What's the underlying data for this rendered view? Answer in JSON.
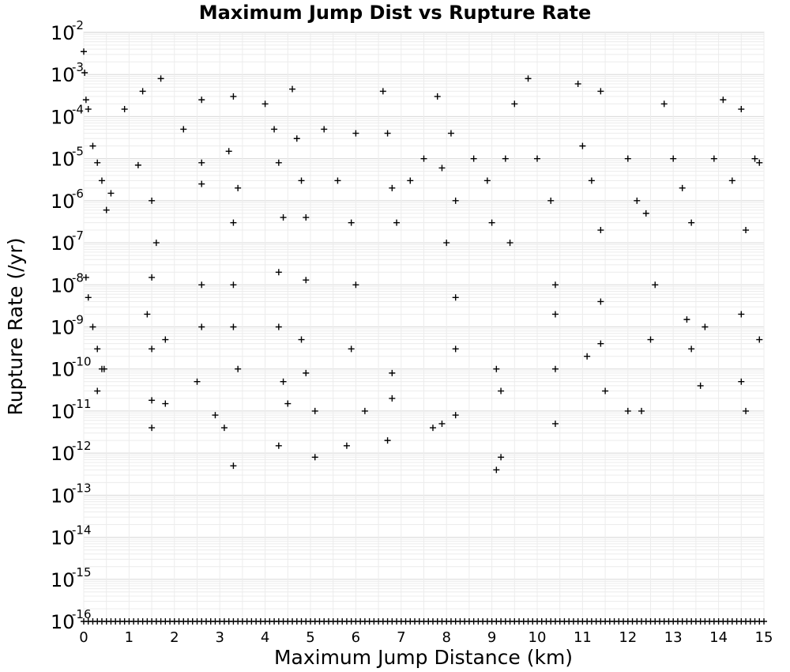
{
  "chart_data": {
    "type": "scatter",
    "title": "Maximum Jump Dist vs Rupture Rate",
    "xlabel": "Maximum Jump Distance (km)",
    "ylabel": "Rupture Rate (/yr)",
    "xlim": [
      0,
      15
    ],
    "ylim": [
      1e-16,
      0.01
    ],
    "yscale": "log",
    "grid": true,
    "marker": "plus",
    "marker_color": "#000000",
    "x_ticks": [
      "0",
      "1",
      "2",
      "3",
      "4",
      "5",
      "6",
      "7",
      "8",
      "9",
      "10",
      "11",
      "12",
      "13",
      "14",
      "15"
    ],
    "y_ticks": [
      {
        "base": "10",
        "exp": "-2"
      },
      {
        "base": "10",
        "exp": "-3"
      },
      {
        "base": "10",
        "exp": "-4"
      },
      {
        "base": "10",
        "exp": "-5"
      },
      {
        "base": "10",
        "exp": "-6"
      },
      {
        "base": "10",
        "exp": "-7"
      },
      {
        "base": "10",
        "exp": "-8"
      },
      {
        "base": "10",
        "exp": "-9"
      },
      {
        "base": "10",
        "exp": "-10"
      },
      {
        "base": "10",
        "exp": "-11"
      },
      {
        "base": "10",
        "exp": "-12"
      },
      {
        "base": "10",
        "exp": "-13"
      },
      {
        "base": "10",
        "exp": "-14"
      },
      {
        "base": "10",
        "exp": "-15"
      },
      {
        "base": "10",
        "exp": "-16"
      }
    ],
    "series": [
      {
        "points": [
          [
            0.0,
            0.0035
          ],
          [
            0.02,
            0.0011
          ],
          [
            0.05,
            0.00025
          ],
          [
            0.1,
            0.00015
          ],
          [
            0.2,
            2e-05
          ],
          [
            0.3,
            8e-06
          ],
          [
            0.4,
            3e-06
          ],
          [
            0.5,
            6e-07
          ],
          [
            0.6,
            1.5e-06
          ],
          [
            0.05,
            1.5e-08
          ],
          [
            0.1,
            5e-09
          ],
          [
            0.2,
            1e-09
          ],
          [
            0.3,
            3e-10
          ],
          [
            0.4,
            1e-10
          ],
          [
            0.3,
            3e-11
          ],
          [
            0.45,
            1e-10
          ],
          [
            0.9,
            0.00015
          ],
          [
            1.2,
            7e-06
          ],
          [
            1.3,
            0.0004
          ],
          [
            1.5,
            1e-06
          ],
          [
            1.6,
            1e-07
          ],
          [
            1.7,
            0.0008
          ],
          [
            1.5,
            1.5e-08
          ],
          [
            1.4,
            2e-09
          ],
          [
            1.5,
            3e-10
          ],
          [
            1.5,
            4e-12
          ],
          [
            1.5,
            1.8e-11
          ],
          [
            1.8,
            1.5e-11
          ],
          [
            1.8,
            5e-10
          ],
          [
            2.2,
            5e-05
          ],
          [
            2.6,
            0.00025
          ],
          [
            2.6,
            8e-06
          ],
          [
            2.6,
            2.5e-06
          ],
          [
            2.6,
            1e-08
          ],
          [
            2.6,
            1e-09
          ],
          [
            2.5,
            5e-11
          ],
          [
            3.3,
            0.0003
          ],
          [
            3.2,
            1.5e-05
          ],
          [
            3.4,
            2e-06
          ],
          [
            3.3,
            3e-07
          ],
          [
            3.3,
            1e-08
          ],
          [
            3.3,
            1e-09
          ],
          [
            3.4,
            1e-10
          ],
          [
            3.3,
            5e-13
          ],
          [
            3.1,
            4e-12
          ],
          [
            2.9,
            8e-12
          ],
          [
            4.0,
            0.0002
          ],
          [
            4.2,
            5e-05
          ],
          [
            4.3,
            8e-06
          ],
          [
            4.4,
            4e-07
          ],
          [
            4.3,
            2e-08
          ],
          [
            4.3,
            1e-09
          ],
          [
            4.4,
            5e-11
          ],
          [
            4.3,
            1.5e-12
          ],
          [
            4.5,
            1.5e-11
          ],
          [
            4.6,
            0.00045
          ],
          [
            4.7,
            3e-05
          ],
          [
            4.8,
            3e-06
          ],
          [
            4.9,
            4e-07
          ],
          [
            4.9,
            1.3e-08
          ],
          [
            4.8,
            5e-10
          ],
          [
            4.9,
            8e-11
          ],
          [
            5.1,
            1e-11
          ],
          [
            5.1,
            8e-13
          ],
          [
            5.3,
            5e-05
          ],
          [
            5.6,
            3e-06
          ],
          [
            5.9,
            3e-07
          ],
          [
            6.0,
            4e-05
          ],
          [
            6.0,
            1e-08
          ],
          [
            5.9,
            3e-10
          ],
          [
            5.8,
            1.5e-12
          ],
          [
            6.2,
            1e-11
          ],
          [
            6.6,
            0.0004
          ],
          [
            6.7,
            4e-05
          ],
          [
            6.8,
            2e-06
          ],
          [
            6.9,
            3e-07
          ],
          [
            6.8,
            8e-11
          ],
          [
            6.8,
            2e-11
          ],
          [
            6.7,
            2e-12
          ],
          [
            7.2,
            3e-06
          ],
          [
            7.5,
            1e-05
          ],
          [
            7.8,
            0.0003
          ],
          [
            7.9,
            6e-06
          ],
          [
            8.0,
            1e-07
          ],
          [
            8.1,
            4e-05
          ],
          [
            8.2,
            1e-06
          ],
          [
            8.2,
            3e-10
          ],
          [
            8.2,
            8e-12
          ],
          [
            8.2,
            5e-09
          ],
          [
            7.9,
            5e-12
          ],
          [
            7.7,
            4e-12
          ],
          [
            8.6,
            1e-05
          ],
          [
            8.9,
            3e-06
          ],
          [
            9.0,
            3e-07
          ],
          [
            9.3,
            1e-05
          ],
          [
            9.4,
            1e-07
          ],
          [
            9.5,
            0.0002
          ],
          [
            9.1,
            1e-10
          ],
          [
            9.2,
            3e-11
          ],
          [
            9.2,
            8e-13
          ],
          [
            9.1,
            4e-13
          ],
          [
            9.8,
            0.0008
          ],
          [
            10.0,
            1e-05
          ],
          [
            10.3,
            1e-06
          ],
          [
            10.4,
            1e-08
          ],
          [
            10.4,
            2e-09
          ],
          [
            10.4,
            1e-10
          ],
          [
            10.4,
            5e-12
          ],
          [
            10.9,
            0.0006
          ],
          [
            11.0,
            2e-05
          ],
          [
            11.2,
            3e-06
          ],
          [
            11.4,
            0.0004
          ],
          [
            11.4,
            2e-07
          ],
          [
            11.4,
            4e-09
          ],
          [
            11.5,
            3e-11
          ],
          [
            11.4,
            4e-10
          ],
          [
            11.1,
            2e-10
          ],
          [
            12.0,
            1e-05
          ],
          [
            12.2,
            1e-06
          ],
          [
            12.4,
            5e-07
          ],
          [
            12.6,
            1e-08
          ],
          [
            12.5,
            5e-10
          ],
          [
            12.0,
            1e-11
          ],
          [
            12.3,
            1e-11
          ],
          [
            12.8,
            0.0002
          ],
          [
            13.0,
            1e-05
          ],
          [
            13.2,
            2e-06
          ],
          [
            13.4,
            3e-07
          ],
          [
            13.3,
            1.5e-09
          ],
          [
            13.4,
            3e-10
          ],
          [
            13.6,
            4e-11
          ],
          [
            13.7,
            1e-09
          ],
          [
            13.9,
            1e-05
          ],
          [
            14.1,
            0.00025
          ],
          [
            14.3,
            3e-06
          ],
          [
            14.5,
            0.00015
          ],
          [
            14.6,
            2e-07
          ],
          [
            14.8,
            1e-05
          ],
          [
            14.9,
            8e-06
          ],
          [
            14.5,
            2e-09
          ],
          [
            14.5,
            5e-11
          ],
          [
            14.6,
            1e-11
          ],
          [
            14.9,
            5e-10
          ]
        ]
      }
    ],
    "floor_markers_note": "dense row of markers at 1e-16 across entire x range",
    "floor_x": [
      0.0,
      0.1,
      0.2,
      0.3,
      0.4,
      0.5,
      0.6,
      0.7,
      0.8,
      0.9,
      1.0,
      1.1,
      1.2,
      1.3,
      1.4,
      1.5,
      1.6,
      1.7,
      1.8,
      1.9,
      2.0,
      2.1,
      2.2,
      2.3,
      2.4,
      2.5,
      2.6,
      2.7,
      2.8,
      2.9,
      3.0,
      3.1,
      3.2,
      3.3,
      3.4,
      3.5,
      3.6,
      3.7,
      3.8,
      3.9,
      4.0,
      4.1,
      4.2,
      4.3,
      4.4,
      4.5,
      4.6,
      4.7,
      4.8,
      4.9,
      5.0,
      5.1,
      5.2,
      5.3,
      5.4,
      5.5,
      5.6,
      5.7,
      5.8,
      5.9,
      6.0,
      6.1,
      6.2,
      6.3,
      6.4,
      6.5,
      6.6,
      6.7,
      6.8,
      6.9,
      7.0,
      7.1,
      7.2,
      7.3,
      7.4,
      7.5,
      7.6,
      7.7,
      7.8,
      7.9,
      8.0,
      8.1,
      8.2,
      8.3,
      8.4,
      8.5,
      8.6,
      8.7,
      8.8,
      8.9,
      9.0,
      9.1,
      9.2,
      9.3,
      9.4,
      9.5,
      9.6,
      9.7,
      9.8,
      9.9,
      10.0,
      10.1,
      10.2,
      10.3,
      10.4,
      10.5,
      10.6,
      10.7,
      10.8,
      10.9,
      11.0,
      11.1,
      11.2,
      11.3,
      11.4,
      11.5,
      11.6,
      11.7,
      11.8,
      11.9,
      12.0,
      12.1,
      12.2,
      12.3,
      12.4,
      12.5,
      12.6,
      12.7,
      12.8,
      12.9,
      13.0,
      13.1,
      13.2,
      13.3,
      13.4,
      13.5,
      13.6,
      13.7,
      13.8,
      13.9,
      14.0,
      14.1,
      14.2,
      14.3,
      14.4,
      14.5,
      14.6,
      14.7,
      14.8,
      14.9,
      15.0
    ]
  }
}
